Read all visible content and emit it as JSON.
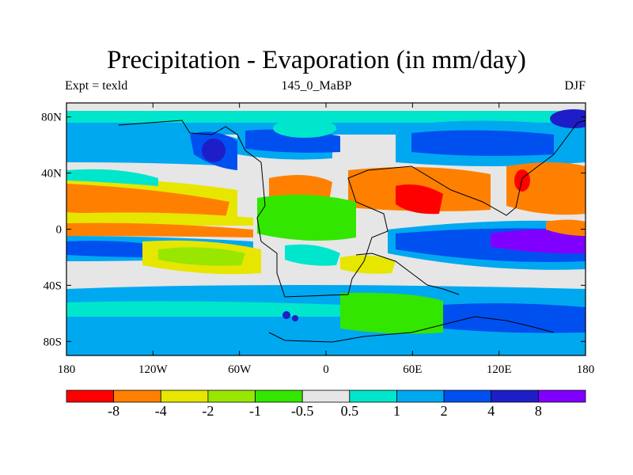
{
  "title": "Precipitation - Evaporation (in mm/day)",
  "subtitle_left": "Expt = texld",
  "subtitle_center": "145_0_MaBP",
  "subtitle_right": "DJF",
  "axes": {
    "lon_ticks": [
      "180",
      "120W",
      "60W",
      "0",
      "60E",
      "120E",
      "180"
    ],
    "lat_ticks": [
      "80N",
      "40N",
      "0",
      "40S",
      "80S"
    ]
  },
  "colorbar": {
    "colors": [
      "#ff0000",
      "#ff8000",
      "#e6e600",
      "#99e600",
      "#33e600",
      "#e6e6e6",
      "#00e6cc",
      "#00a8f0",
      "#0050f0",
      "#1e1ec8",
      "#8000ff"
    ],
    "labels": [
      "-8",
      "-4",
      "-2",
      "-1",
      "-0.5",
      "0.5",
      "1",
      "2",
      "4",
      "8"
    ]
  }
}
